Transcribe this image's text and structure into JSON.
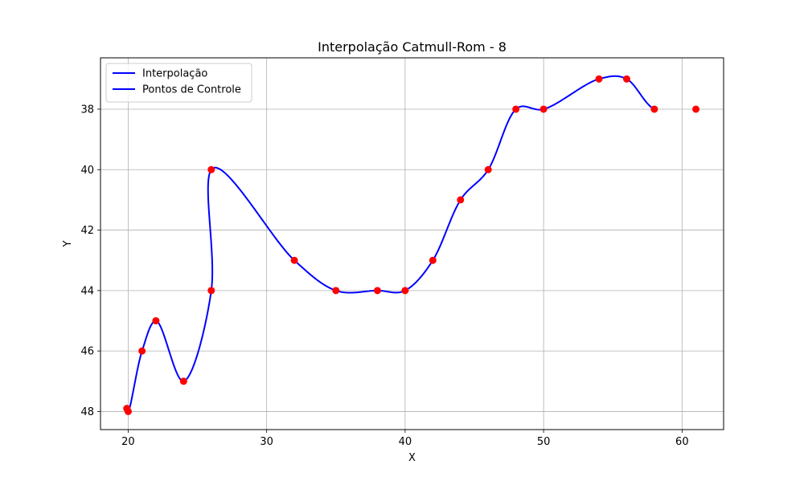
{
  "chart_data": {
    "type": "line",
    "title": "Interpolação Catmull-Rom - 8",
    "xlabel": "X",
    "ylabel": "Y",
    "xlim": [
      18,
      63
    ],
    "ylim": [
      48.6,
      36.3
    ],
    "y_inverted": true,
    "grid": true,
    "legend_placement": "upper-left",
    "xticks": [
      20,
      30,
      40,
      50,
      60
    ],
    "yticks": [
      38,
      40,
      42,
      44,
      46,
      48
    ],
    "series": [
      {
        "name": "Interpolação",
        "kind": "curve",
        "color": "#0000ff"
      },
      {
        "name": "Pontos de Controle",
        "kind": "markers",
        "color": "#ff0000"
      }
    ],
    "control_points": [
      {
        "x": 19.9,
        "y": 47.9
      },
      {
        "x": 20,
        "y": 48
      },
      {
        "x": 21,
        "y": 46
      },
      {
        "x": 22,
        "y": 45
      },
      {
        "x": 24,
        "y": 47
      },
      {
        "x": 26,
        "y": 44
      },
      {
        "x": 26,
        "y": 40
      },
      {
        "x": 32,
        "y": 43
      },
      {
        "x": 35,
        "y": 44
      },
      {
        "x": 38,
        "y": 44
      },
      {
        "x": 40,
        "y": 44
      },
      {
        "x": 42,
        "y": 43
      },
      {
        "x": 44,
        "y": 41
      },
      {
        "x": 46,
        "y": 40
      },
      {
        "x": 48,
        "y": 38
      },
      {
        "x": 50,
        "y": 38
      },
      {
        "x": 54,
        "y": 37
      },
      {
        "x": 56,
        "y": 37
      },
      {
        "x": 58,
        "y": 38
      },
      {
        "x": 61,
        "y": 38
      }
    ]
  }
}
